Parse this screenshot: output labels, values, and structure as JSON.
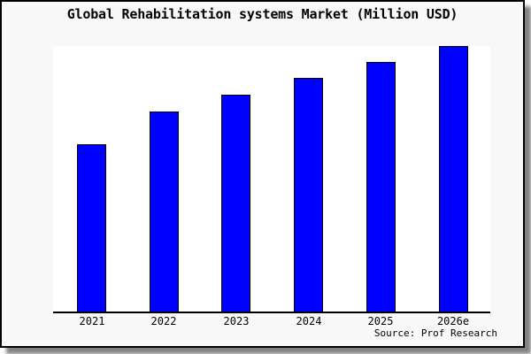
{
  "title": "Global Rehabilitation systems Market (Million USD)",
  "source_credit": "Source: Prof Research",
  "colors": {
    "bar_fill": "#0000fe",
    "bar_edge": "#000000",
    "canvas_background": "#f8f8f8",
    "plot_background": "#ffffff",
    "frame_border": "#000000",
    "text": "#000000"
  },
  "chart_data": {
    "type": "bar",
    "title": "Global Rehabilitation systems Market (Million USD)",
    "categories": [
      "2021",
      "2022",
      "2023",
      "2024",
      "2025",
      "2026e"
    ],
    "values": [
      63.1,
      75.4,
      81.7,
      88.0,
      94.0,
      100.0
    ],
    "value_units": "relative height, % of tallest bar (no y-axis scale shown in chart)",
    "xlabel": "",
    "ylabel": "",
    "ylim": [
      0,
      100
    ],
    "grid": false,
    "legend": false,
    "y_axis_shown": false,
    "annotations": [
      "Source: Prof Research"
    ]
  }
}
